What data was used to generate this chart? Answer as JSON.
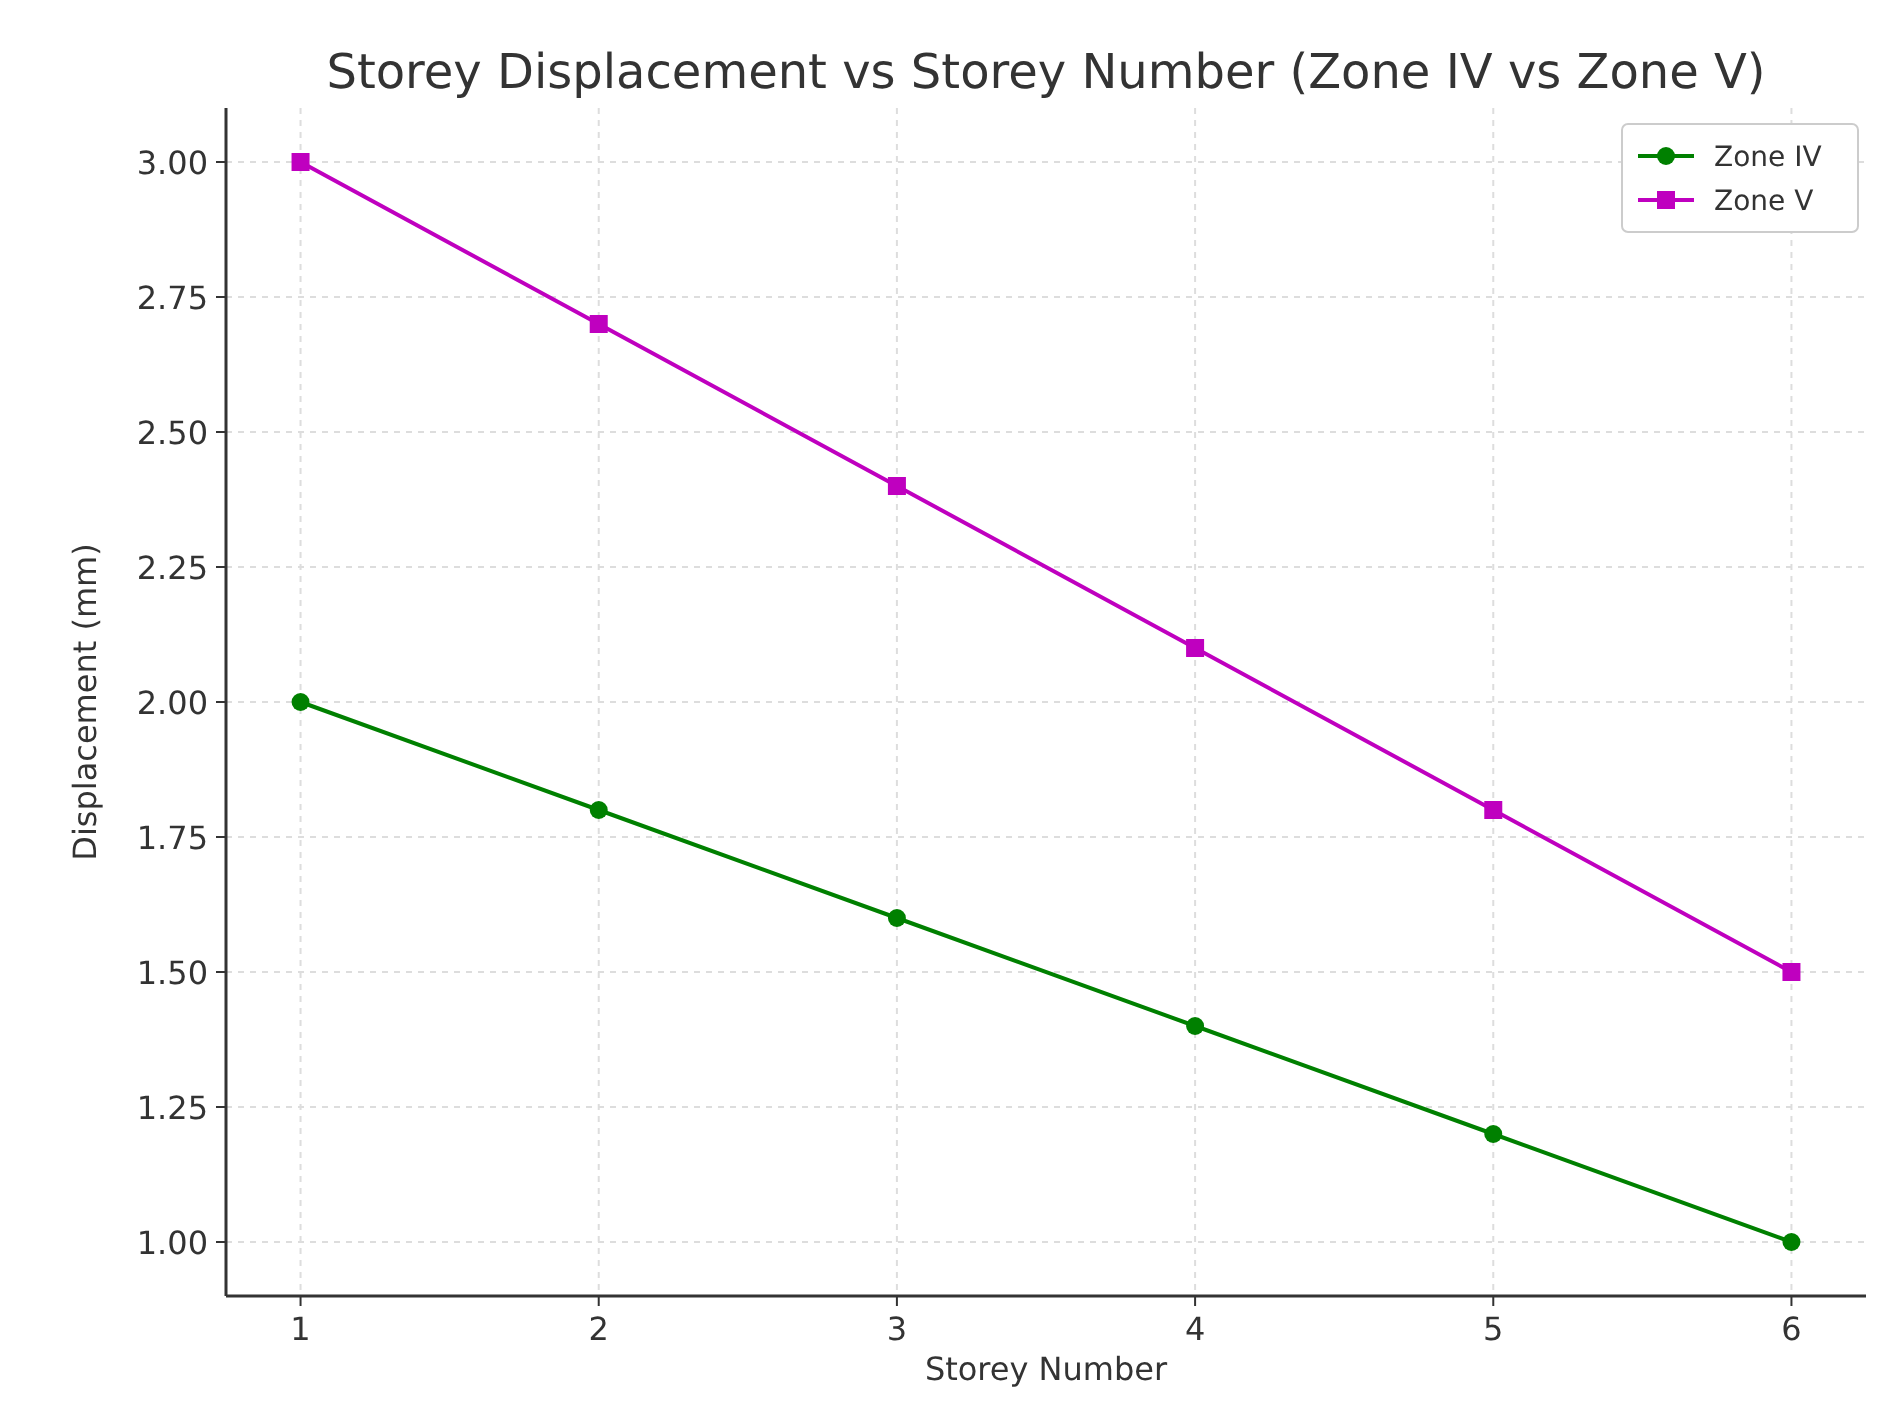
{
  "chart_data": {
    "type": "line",
    "title": "Storey Displacement vs Storey Number (Zone IV vs Zone V)",
    "xlabel": "Storey Number",
    "ylabel": "Displacement (mm)",
    "x": [
      1,
      2,
      3,
      4,
      5,
      6
    ],
    "series": [
      {
        "name": "Zone IV",
        "color": "#008000",
        "marker": "circle",
        "values": [
          2.0,
          1.8,
          1.6,
          1.4,
          1.2,
          1.0
        ]
      },
      {
        "name": "Zone V",
        "color": "#bf00bf",
        "marker": "square",
        "values": [
          3.0,
          2.7,
          2.4,
          2.1,
          1.8,
          1.5
        ]
      }
    ],
    "xlim": [
      0.75,
      6.25
    ],
    "xticks": [
      1,
      2,
      3,
      4,
      5,
      6
    ],
    "ylim": [
      0.9,
      3.1
    ],
    "yticks": [
      {
        "value": 1,
        "label": "1.00"
      },
      {
        "value": 1.25,
        "label": "1.25"
      },
      {
        "value": 1.5,
        "label": "1.50"
      },
      {
        "value": 1.75,
        "label": "1.75"
      },
      {
        "value": 2,
        "label": "2.00"
      },
      {
        "value": 2.25,
        "label": "2.25"
      },
      {
        "value": 2.5,
        "label": "2.50"
      },
      {
        "value": 2.75,
        "label": "2.75"
      },
      {
        "value": 3,
        "label": "3.00"
      }
    ],
    "grid": true,
    "legend": "top right",
    "line_style": "solid"
  }
}
